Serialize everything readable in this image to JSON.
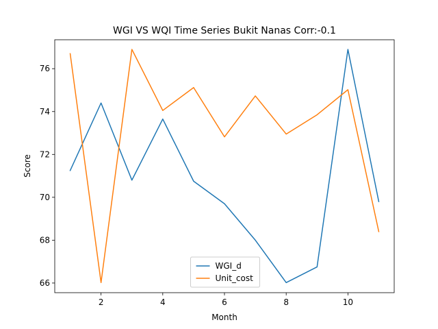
{
  "chart_data": {
    "type": "line",
    "title": "WGI VS WQI Time Series Bukit Nanas Corr:-0.1",
    "xlabel": "Month",
    "ylabel": "Score",
    "x": [
      1,
      2,
      3,
      4,
      5,
      6,
      7,
      8,
      9,
      10,
      11
    ],
    "xlim": [
      0.5,
      11.5
    ],
    "ylim": [
      65.55,
      77.35
    ],
    "xticks": [
      2,
      4,
      6,
      8,
      10
    ],
    "yticks": [
      66,
      68,
      70,
      72,
      74,
      76
    ],
    "grid": false,
    "legend_position": "lower-center",
    "series": [
      {
        "name": "WGI_d",
        "color": "#1f77b4",
        "values": [
          71.25,
          74.4,
          70.8,
          73.65,
          70.75,
          69.7,
          68.0,
          66.02,
          66.75,
          76.9,
          69.8
        ]
      },
      {
        "name": "Unit_cost",
        "color": "#ff7f0e",
        "values": [
          76.7,
          66.02,
          76.9,
          74.05,
          75.12,
          72.82,
          74.73,
          72.95,
          73.85,
          75.02,
          68.4
        ]
      }
    ]
  }
}
